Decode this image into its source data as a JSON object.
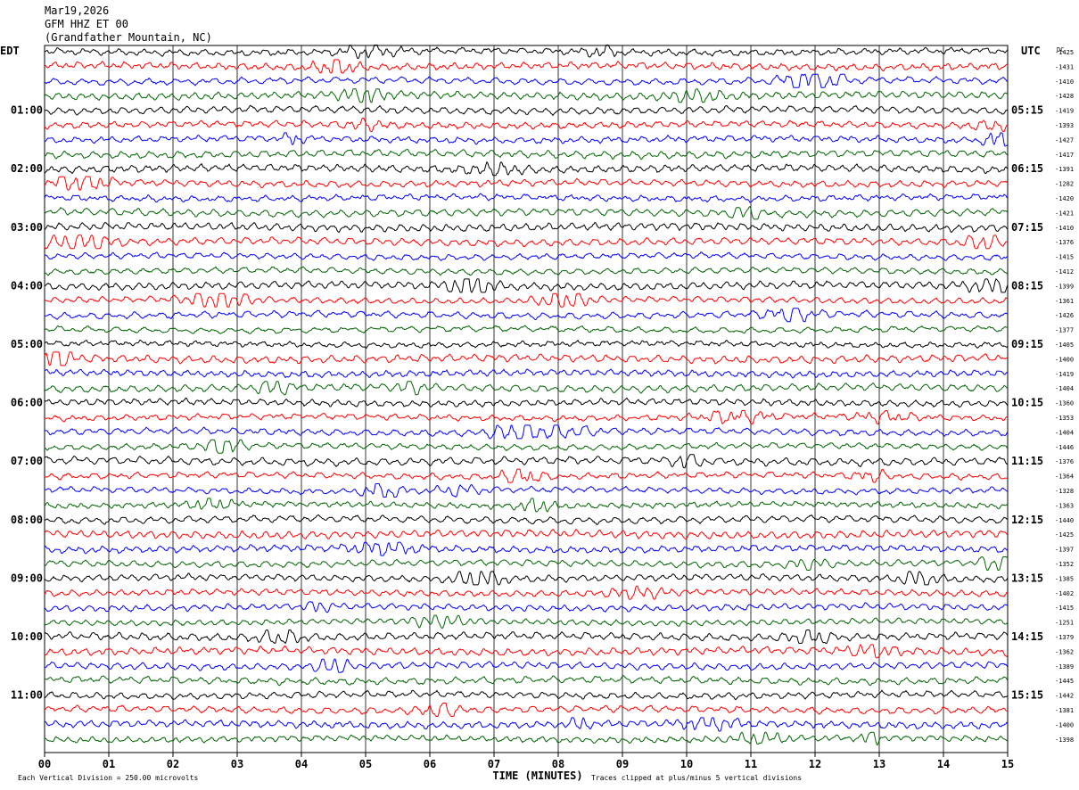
{
  "header": {
    "date": "Mar19,2026",
    "station": "GFM HHZ ET 00",
    "location": "(Grandfather Mountain, NC)"
  },
  "chart_data": {
    "type": "line",
    "title": "",
    "left_timezone": "EDT",
    "right_timezone": "UTC",
    "dc_label": "DC",
    "xlabel": "TIME (MINUTES)",
    "x_ticks": [
      "00",
      "01",
      "02",
      "03",
      "04",
      "05",
      "06",
      "07",
      "08",
      "09",
      "10",
      "11",
      "12",
      "13",
      "14",
      "15"
    ],
    "xlim": [
      0,
      15
    ],
    "left_hour_labels": [
      "01:00",
      "02:00",
      "03:00",
      "04:00",
      "05:00",
      "06:00",
      "07:00",
      "08:00",
      "09:00",
      "10:00",
      "11:00"
    ],
    "right_hour_labels": [
      "05:15",
      "06:15",
      "07:15",
      "08:15",
      "09:15",
      "10:15",
      "11:15",
      "12:15",
      "13:15",
      "14:15",
      "15:15"
    ],
    "dc_offsets": [
      -1425,
      -1431,
      -1410,
      -1428,
      -1419,
      -1393,
      -1427,
      -1417,
      -1391,
      -1282,
      -1420,
      -1421,
      -1410,
      -1376,
      -1415,
      -1412,
      -1399,
      -1361,
      -1426,
      -1377,
      -1405,
      -1400,
      -1419,
      -1404,
      -1360,
      -1353,
      -1404,
      -1446,
      -1376,
      -1364,
      -1328,
      -1363,
      -1440,
      -1425,
      -1397,
      -1352,
      -1385,
      -1402,
      -1415,
      -1251,
      -1379,
      -1362,
      -1389,
      -1445,
      -1442,
      -1381,
      -1400,
      -1398
    ],
    "trace_colors": [
      "#000000",
      "#ff0000",
      "#0000ff",
      "#006400"
    ],
    "scale_note": "Each Vertical Division =  250.00 microvolts",
    "clip_note": "Traces clipped at plus/minus 5 vertical divisions",
    "grid": true
  }
}
